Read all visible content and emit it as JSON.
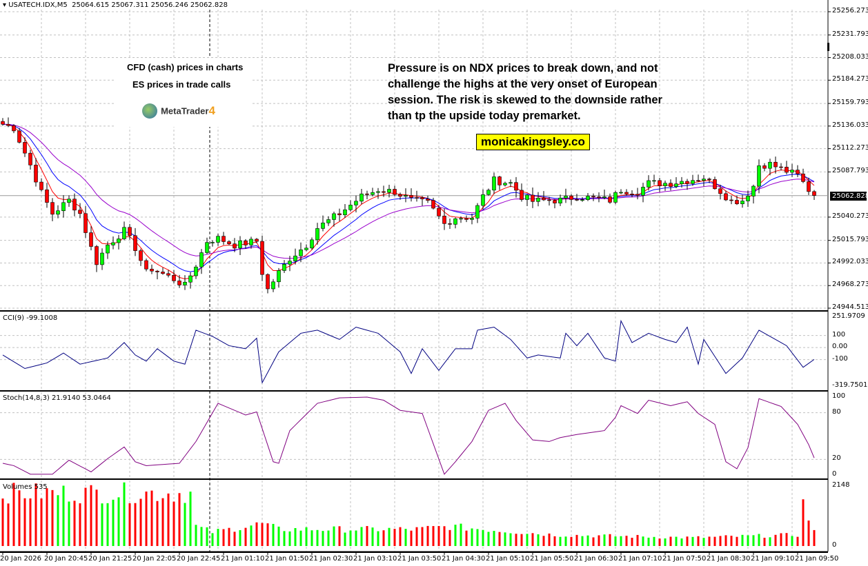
{
  "header": {
    "symbol": "USATECH.IDX,M5",
    "ohlc": "25064.615 25067.311 25056.246 25062.828"
  },
  "notes": {
    "left_line1": "CFD (cash) prices in charts",
    "left_line2": "ES prices in trade calls",
    "logo_text": "MetaTrader",
    "logo_num": "4",
    "commentary": [
      "Pressure is on NDX prices to break down, and not",
      "challenge the highs at the very onset of European",
      "session. The risk is skewed to the downside rather",
      "than tp the upside today premarket."
    ],
    "website": "monicakingsley.co"
  },
  "colors": {
    "bull": "#00ff00",
    "bear": "#ff0000",
    "ma_fast": "#ff0000",
    "ma_mid": "#0000ff",
    "ma_slow": "#9900cc",
    "cci": "#000080",
    "stoch": "#800080",
    "grid": "#c0c0c0"
  },
  "chart_data": [
    {
      "type": "candlestick",
      "title": "USATECH.IDX,M5",
      "current_price": "25062.828",
      "y_ticks": [
        "25256.273",
        "25231.793",
        "25208.033",
        "25184.273",
        "25159.793",
        "25136.033",
        "25112.273",
        "25087.793",
        "25040.273",
        "25015.793",
        "24992.033",
        "24968.273",
        "24944.513"
      ],
      "ylim": [
        24944.513,
        25256.273
      ],
      "bars": 148,
      "close_keypoints": [
        [
          0,
          25138
        ],
        [
          2,
          25134
        ],
        [
          5,
          25095
        ],
        [
          7,
          25066
        ],
        [
          9,
          25044
        ],
        [
          12,
          25058
        ],
        [
          14,
          25044
        ],
        [
          16,
          25008
        ],
        [
          17,
          24993
        ],
        [
          19,
          25011
        ],
        [
          22,
          25026
        ],
        [
          24,
          25008
        ],
        [
          26,
          24982
        ],
        [
          27,
          24986
        ],
        [
          31,
          24975
        ],
        [
          33,
          24968
        ],
        [
          35,
          24990
        ],
        [
          37,
          25015
        ],
        [
          39,
          25018
        ],
        [
          42,
          25011
        ],
        [
          46,
          25015
        ],
        [
          47,
          24982
        ],
        [
          48,
          24964
        ],
        [
          50,
          24982
        ],
        [
          52,
          24997
        ],
        [
          55,
          25011
        ],
        [
          57,
          25029
        ],
        [
          61,
          25044
        ],
        [
          65,
          25062
        ],
        [
          68,
          25069
        ],
        [
          71,
          25067
        ],
        [
          74,
          25058
        ],
        [
          77,
          25055
        ],
        [
          80,
          25033
        ],
        [
          82,
          25040
        ],
        [
          85,
          25040
        ],
        [
          87,
          25062
        ],
        [
          89,
          25079
        ],
        [
          92,
          25076
        ],
        [
          94,
          25062
        ],
        [
          96,
          25057
        ],
        [
          99,
          25058
        ],
        [
          101,
          25058
        ],
        [
          104,
          25062
        ],
        [
          107,
          25060
        ],
        [
          110,
          25058
        ],
        [
          112,
          25069
        ],
        [
          115,
          25067
        ],
        [
          117,
          25076
        ],
        [
          121,
          25076
        ],
        [
          125,
          25080
        ],
        [
          127,
          25082
        ],
        [
          129,
          25073
        ],
        [
          132,
          25057
        ],
        [
          134,
          25058
        ],
        [
          136,
          25073
        ],
        [
          137,
          25095
        ],
        [
          139,
          25096
        ],
        [
          141,
          25091
        ],
        [
          144,
          25084
        ],
        [
          146,
          25069
        ],
        [
          147,
          25063
        ]
      ],
      "x_tick_labels": [
        "20 Jan 2026",
        "20 Jan 20:45",
        "20 Jan 21:25",
        "20 Jan 22:05",
        "20 Jan 22:45",
        "21 Jan 01:10",
        "21 Jan 01:50",
        "21 Jan 02:30",
        "21 Jan 03:10",
        "21 Jan 03:50",
        "21 Jan 04:30",
        "21 Jan 05:10",
        "21 Jan 05:50",
        "21 Jan 06:30",
        "21 Jan 07:10",
        "21 Jan 07:50",
        "21 Jan 08:30",
        "21 Jan 09:10",
        "21 Jan 09:50"
      ]
    },
    {
      "type": "line",
      "title": "CCI(9) -99.1008",
      "ylim": [
        -319.7501,
        251.9709
      ],
      "y_ticks": [
        "251.9709",
        "100",
        "0.00",
        "-100",
        "-319.7501"
      ],
      "keypoints": [
        [
          0,
          -62
        ],
        [
          4,
          -174
        ],
        [
          8,
          -128
        ],
        [
          11,
          -46
        ],
        [
          14,
          -138
        ],
        [
          19,
          -87
        ],
        [
          22,
          41
        ],
        [
          24,
          -62
        ],
        [
          26,
          -113
        ],
        [
          28,
          -10
        ],
        [
          31,
          -113
        ],
        [
          33,
          -138
        ],
        [
          35,
          144
        ],
        [
          38,
          92
        ],
        [
          41,
          15
        ],
        [
          44,
          -10
        ],
        [
          46,
          77
        ],
        [
          47,
          -292
        ],
        [
          50,
          -36
        ],
        [
          54,
          118
        ],
        [
          57,
          144
        ],
        [
          61,
          67
        ],
        [
          64,
          169
        ],
        [
          68,
          118
        ],
        [
          72,
          -36
        ],
        [
          74,
          -215
        ],
        [
          76,
          -10
        ],
        [
          79,
          -190
        ],
        [
          82,
          -10
        ],
        [
          85,
          -10
        ],
        [
          86,
          144
        ],
        [
          89,
          169
        ],
        [
          92,
          67
        ],
        [
          95,
          -87
        ],
        [
          97,
          -62
        ],
        [
          101,
          -87
        ],
        [
          102,
          118
        ],
        [
          104,
          15
        ],
        [
          106,
          118
        ],
        [
          109,
          -87
        ],
        [
          111,
          -113
        ],
        [
          112,
          221
        ],
        [
          114,
          41
        ],
        [
          117,
          118
        ],
        [
          120,
          67
        ],
        [
          122,
          41
        ],
        [
          124,
          169
        ],
        [
          126,
          -138
        ],
        [
          127,
          67
        ],
        [
          131,
          -215
        ],
        [
          134,
          -87
        ],
        [
          137,
          144
        ],
        [
          141,
          41
        ],
        [
          142,
          15
        ],
        [
          145,
          -164
        ],
        [
          147,
          -99
        ]
      ]
    },
    {
      "type": "line",
      "title": "Stoch(14,8,3) 21.9140 53.0464",
      "ylim": [
        0,
        100
      ],
      "y_ticks": [
        "100",
        "80",
        "20",
        "0"
      ],
      "keypoints": [
        [
          0,
          15
        ],
        [
          2,
          12
        ],
        [
          5,
          1
        ],
        [
          9,
          1
        ],
        [
          12,
          19
        ],
        [
          16,
          4
        ],
        [
          19,
          21
        ],
        [
          22,
          36
        ],
        [
          24,
          17
        ],
        [
          26,
          12
        ],
        [
          30,
          14
        ],
        [
          32,
          15
        ],
        [
          35,
          43
        ],
        [
          39,
          92
        ],
        [
          44,
          77
        ],
        [
          46,
          81
        ],
        [
          49,
          17
        ],
        [
          50,
          15
        ],
        [
          52,
          57
        ],
        [
          57,
          92
        ],
        [
          61,
          99
        ],
        [
          66,
          100
        ],
        [
          69,
          96
        ],
        [
          72,
          83
        ],
        [
          76,
          79
        ],
        [
          80,
          1
        ],
        [
          82,
          17
        ],
        [
          85,
          43
        ],
        [
          88,
          83
        ],
        [
          91,
          92
        ],
        [
          93,
          70
        ],
        [
          96,
          45
        ],
        [
          99,
          43
        ],
        [
          101,
          48
        ],
        [
          104,
          52
        ],
        [
          109,
          57
        ],
        [
          111,
          74
        ],
        [
          112,
          89
        ],
        [
          115,
          79
        ],
        [
          117,
          96
        ],
        [
          121,
          89
        ],
        [
          124,
          94
        ],
        [
          126,
          79
        ],
        [
          129,
          65
        ],
        [
          131,
          17
        ],
        [
          133,
          8
        ],
        [
          135,
          35
        ],
        [
          137,
          98
        ],
        [
          141,
          88
        ],
        [
          144,
          65
        ],
        [
          146,
          39
        ],
        [
          147,
          22
        ]
      ]
    },
    {
      "type": "bar",
      "title": "Volumes 535",
      "ylim": [
        0,
        2148
      ],
      "y_ticks": [
        "2148",
        "0"
      ],
      "keypoints": [
        [
          0,
          1900
        ],
        [
          34,
          1900
        ],
        [
          35,
          700
        ],
        [
          38,
          500
        ],
        [
          47,
          800
        ],
        [
          50,
          600
        ],
        [
          75,
          600
        ],
        [
          81,
          700
        ],
        [
          100,
          400
        ],
        [
          125,
          300
        ],
        [
          144,
          400
        ],
        [
          145,
          1500
        ],
        [
          146,
          1000
        ],
        [
          147,
          535
        ]
      ]
    }
  ]
}
